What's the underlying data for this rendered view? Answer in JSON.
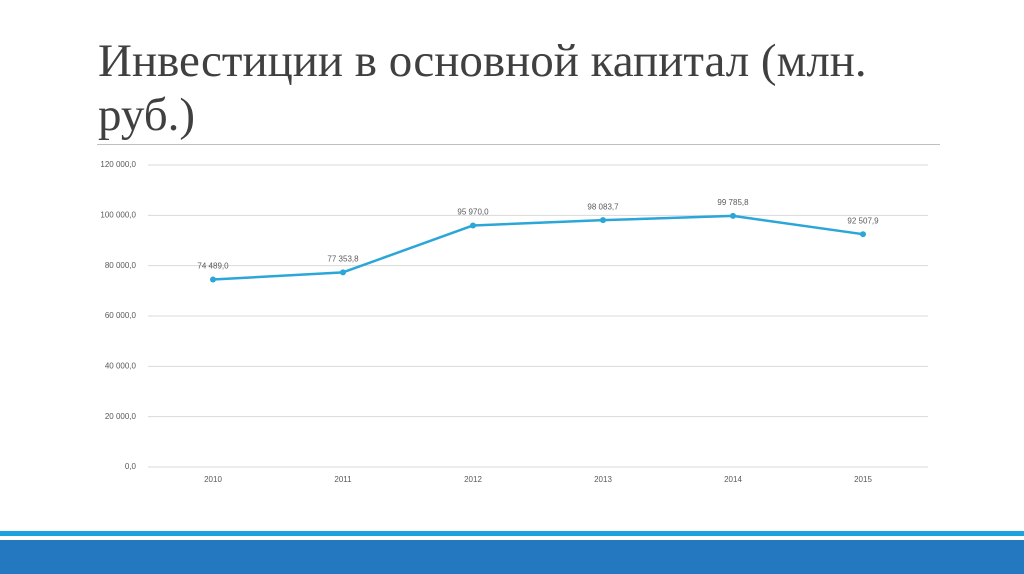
{
  "chart_data": {
    "type": "line",
    "title": "Инвестиции в основной капитал (млн. руб.)",
    "categories": [
      "2010",
      "2011",
      "2012",
      "2013",
      "2014",
      "2015"
    ],
    "values": [
      74489.0,
      77353.8,
      95970.0,
      98083.7,
      99785.8,
      92507.9
    ],
    "value_labels": [
      "74 489,0",
      "77 353,8",
      "95 970,0",
      "98 083,7",
      "99 785,8",
      "92 507,9"
    ],
    "color": "#2ba6d9",
    "ylim": [
      0,
      120000
    ],
    "yticks": [
      {
        "value": 0,
        "label": "0,0"
      },
      {
        "value": 20000,
        "label": "20 000,0"
      },
      {
        "value": 40000,
        "label": "40 000,0"
      },
      {
        "value": 60000,
        "label": "60 000,0"
      },
      {
        "value": 80000,
        "label": "80 000,0"
      },
      {
        "value": 100000,
        "label": "100 000,0"
      },
      {
        "value": 120000,
        "label": "120 000,0"
      }
    ],
    "grid": true
  }
}
